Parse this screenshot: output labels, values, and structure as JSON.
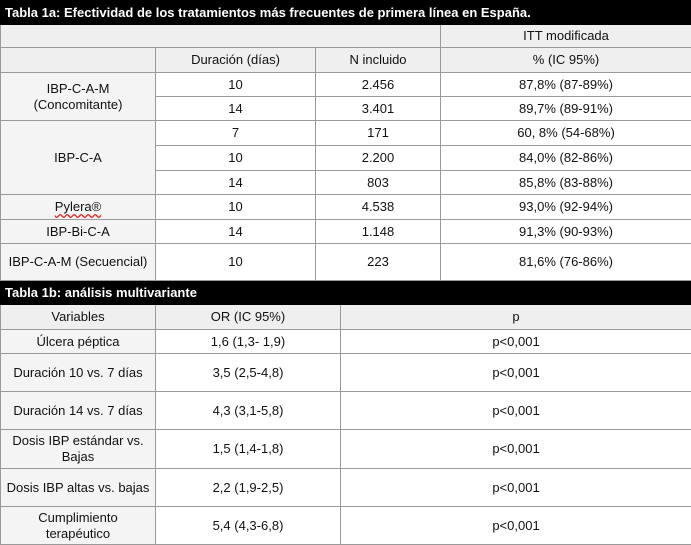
{
  "table_1a": {
    "title": "Tabla 1a: Efectividad de los tratamientos más frecuentes de primera línea en España.",
    "group_header": "ITT modificada",
    "columns": [
      "Duración (días)",
      "N incluido",
      "% (IC 95%)"
    ],
    "groups": [
      {
        "label": "IBP-C-A-M (Concomitante)",
        "rows": [
          [
            "10",
            "2.456",
            "87,8% (87-89%)"
          ],
          [
            "14",
            "3.401",
            "89,7% (89-91%)"
          ]
        ]
      },
      {
        "label": "IBP-C-A",
        "rows": [
          [
            "7",
            "171",
            "60, 8% (54-68%)"
          ],
          [
            "10",
            "2.200",
            "84,0% (82-86%)"
          ],
          [
            "14",
            "803",
            "85,8% (83-88%)"
          ]
        ]
      },
      {
        "label": "Pylera®",
        "rows": [
          [
            "10",
            "4.538",
            "93,0% (92-94%)"
          ]
        ]
      },
      {
        "label": "IBP-Bi-C-A",
        "rows": [
          [
            "14",
            "1.148",
            "91,3% (90-93%)"
          ]
        ]
      },
      {
        "label": "IBP-C-A-M (Secuencial)",
        "rows": [
          [
            "10",
            "223",
            "81,6% (76-86%)"
          ]
        ]
      }
    ]
  },
  "table_1b": {
    "title": "Tabla 1b: análisis multivariante",
    "columns": [
      "Variables",
      "OR (IC 95%)",
      "p"
    ],
    "rows": [
      [
        "Úlcera péptica",
        "1,6 (1,3- 1,9)",
        "p<0,001"
      ],
      [
        "Duración 10 vs. 7 días",
        "3,5 (2,5-4,8)",
        "p<0,001"
      ],
      [
        "Duración 14 vs. 7 días",
        "4,3 (3,1-5,8)",
        "p<0,001"
      ],
      [
        "Dosis IBP estándar vs. Bajas",
        "1,5 (1,4-1,8)",
        "p<0,001"
      ],
      [
        "Dosis IBP altas vs. bajas",
        "2,2 (1,9-2,5)",
        "p<0,001"
      ],
      [
        "Cumplimiento terapéutico",
        "5,4 (4,3-6,8)",
        "p<0,001"
      ]
    ]
  }
}
